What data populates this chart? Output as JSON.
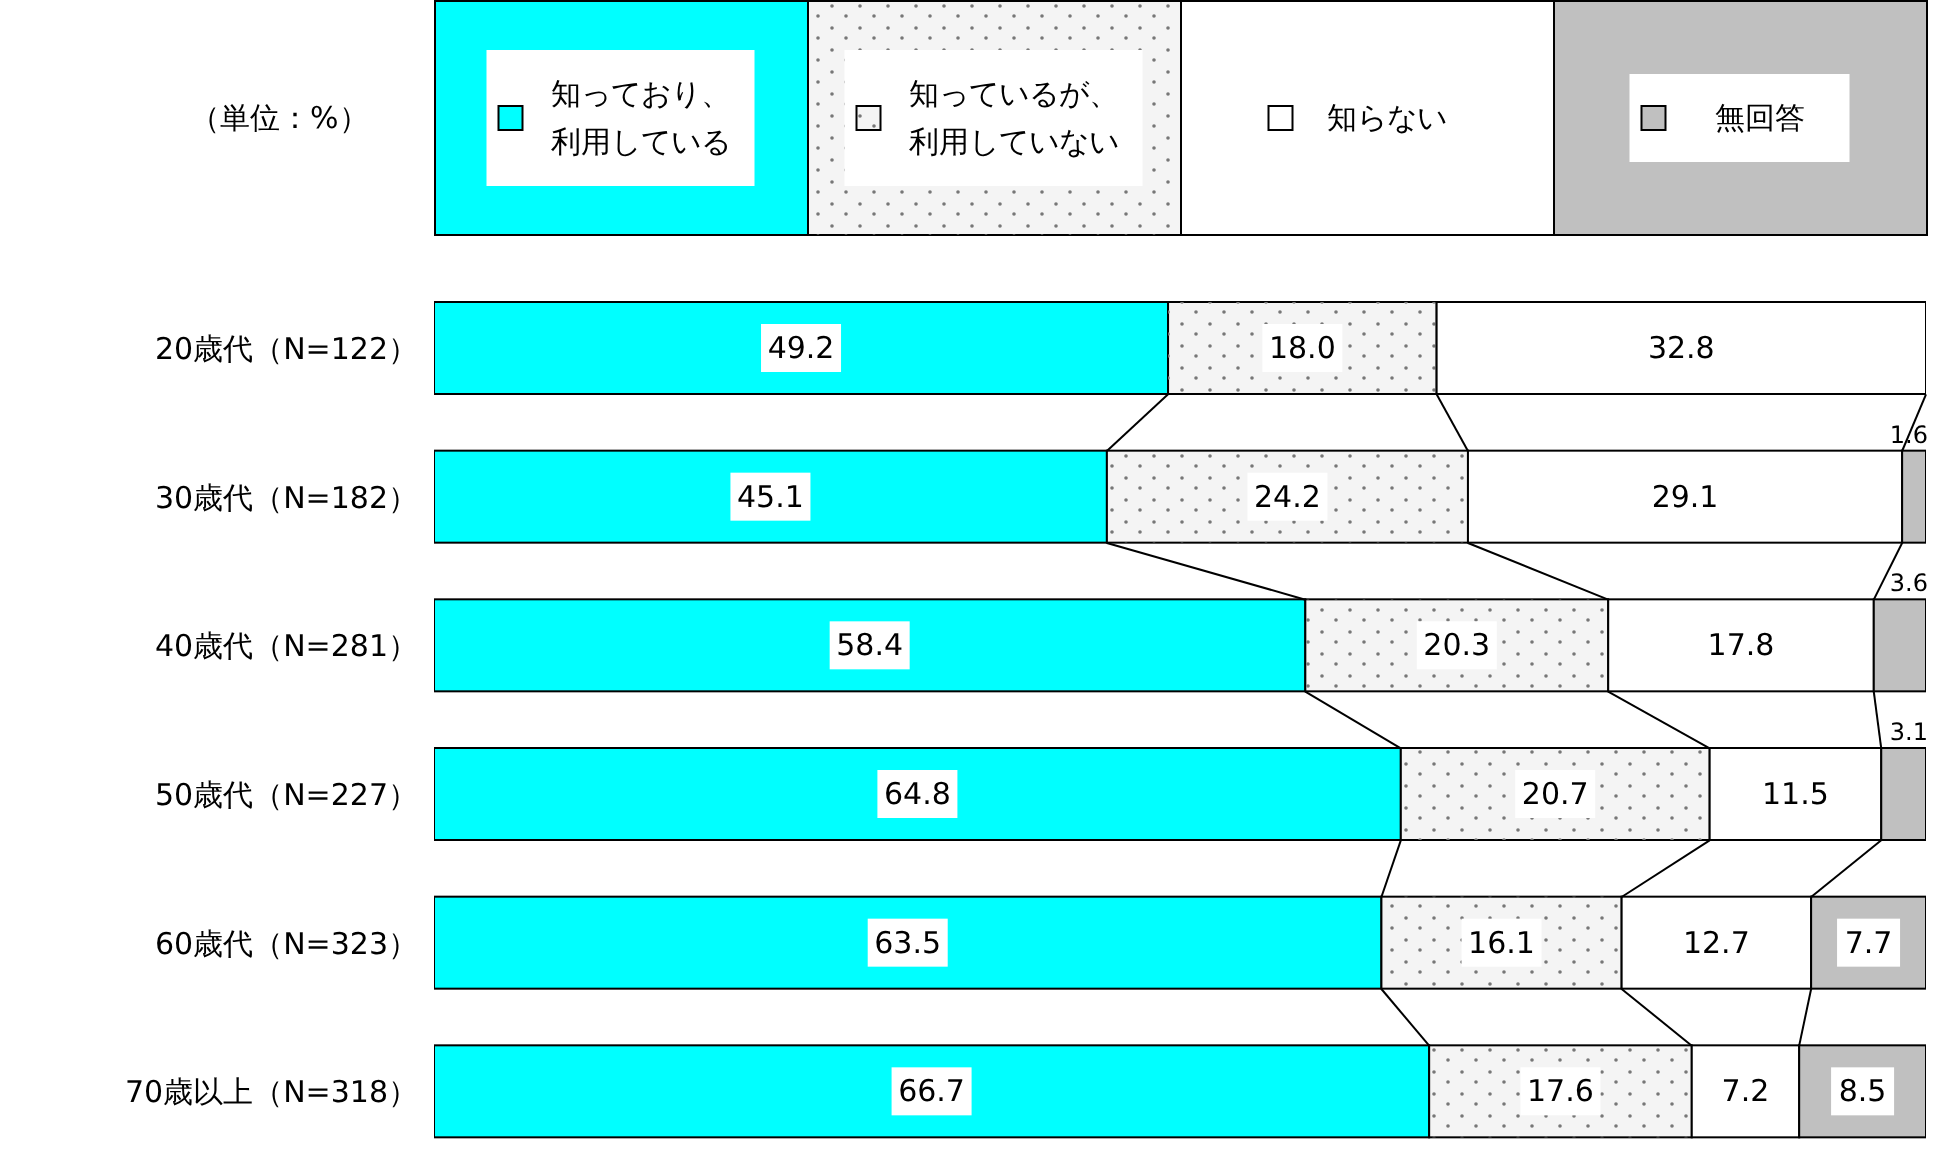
{
  "chart_data": {
    "type": "bar",
    "orientation": "horizontal",
    "stacked": true,
    "annotations": [
      "（単位：%）"
    ],
    "categories": [
      "20歳代（N=122）",
      "30歳代（N=182）",
      "40歳代（N=281）",
      "50歳代（N=227）",
      "60歳代（N=323）",
      "70歳以上（N=318）"
    ],
    "series": [
      {
        "name": "知っており、利用している",
        "color": "#00ffff",
        "values": [
          49.2,
          45.1,
          58.4,
          64.8,
          63.5,
          66.7
        ],
        "value_labels": [
          "49.2",
          "45.1",
          "58.4",
          "64.8",
          "63.5",
          "66.7"
        ]
      },
      {
        "name": "知っているが、利用していない",
        "color": "#f4f4f4",
        "values": [
          18.0,
          24.2,
          20.3,
          20.7,
          16.1,
          17.6
        ],
        "value_labels": [
          "18.0",
          "24.2",
          "20.3",
          "20.7",
          "16.1",
          "17.6"
        ]
      },
      {
        "name": "知らない",
        "color": "#ffffff",
        "values": [
          32.8,
          29.1,
          17.8,
          11.5,
          12.7,
          7.2
        ],
        "value_labels": [
          "32.8",
          "29.1",
          "17.8",
          "11.5",
          "12.7",
          "7.2"
        ]
      },
      {
        "name": "無回答",
        "color": "#c0c0c0",
        "values": [
          null,
          1.6,
          3.6,
          3.1,
          7.7,
          8.5
        ],
        "value_labels": [
          null,
          "1.6",
          "3.6",
          "3.1",
          "7.7",
          "8.5"
        ]
      }
    ],
    "xlim": [
      0,
      100
    ],
    "tick_labels": "y",
    "legend": "top"
  }
}
